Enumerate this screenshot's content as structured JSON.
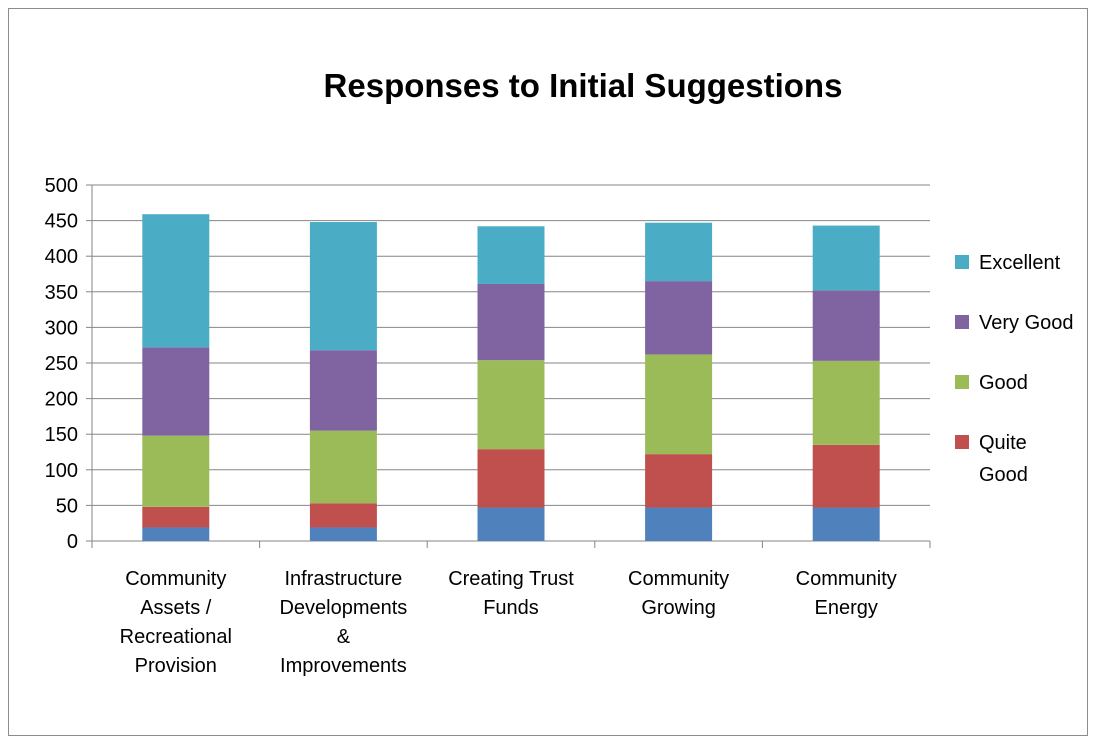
{
  "chart_data": {
    "type": "bar",
    "stacked": true,
    "title": "Responses to Initial Suggestions",
    "xlabel": "",
    "ylabel": "",
    "ylim": [
      0,
      500
    ],
    "yticks": [
      0,
      50,
      100,
      150,
      200,
      250,
      300,
      350,
      400,
      450,
      500
    ],
    "grid": true,
    "legend_position": "right",
    "categories": [
      [
        "Community",
        "Assets /",
        "Recreational",
        "Provision"
      ],
      [
        "Infrastructure",
        "Developments",
        "&",
        "Improvements"
      ],
      [
        "Creating Trust",
        "Funds"
      ],
      [
        "Community",
        "Growing"
      ],
      [
        "Community",
        "Energy"
      ]
    ],
    "series": [
      {
        "values": [
          19,
          19,
          47,
          47,
          47
        ],
        "color": "#4f81bd"
      },
      {
        "name": "Quite Good",
        "legend_lines": [
          "Quite",
          "Good"
        ],
        "values": [
          29,
          34,
          82,
          75,
          88
        ],
        "color": "#c0504d"
      },
      {
        "name": "Good",
        "legend_lines": [
          "Good"
        ],
        "values": [
          100,
          102,
          125,
          140,
          118
        ],
        "color": "#9bbb59"
      },
      {
        "name": "Very Good",
        "legend_lines": [
          "Very Good"
        ],
        "values": [
          124,
          113,
          107,
          103,
          99
        ],
        "color": "#8064a2"
      },
      {
        "name": "Excellent",
        "legend_lines": [
          "Excellent"
        ],
        "values": [
          187,
          180,
          81,
          82,
          91
        ],
        "color": "#4bacc6"
      }
    ],
    "legend_order": [
      "Excellent",
      "Very Good",
      "Good",
      "Quite Good"
    ]
  }
}
